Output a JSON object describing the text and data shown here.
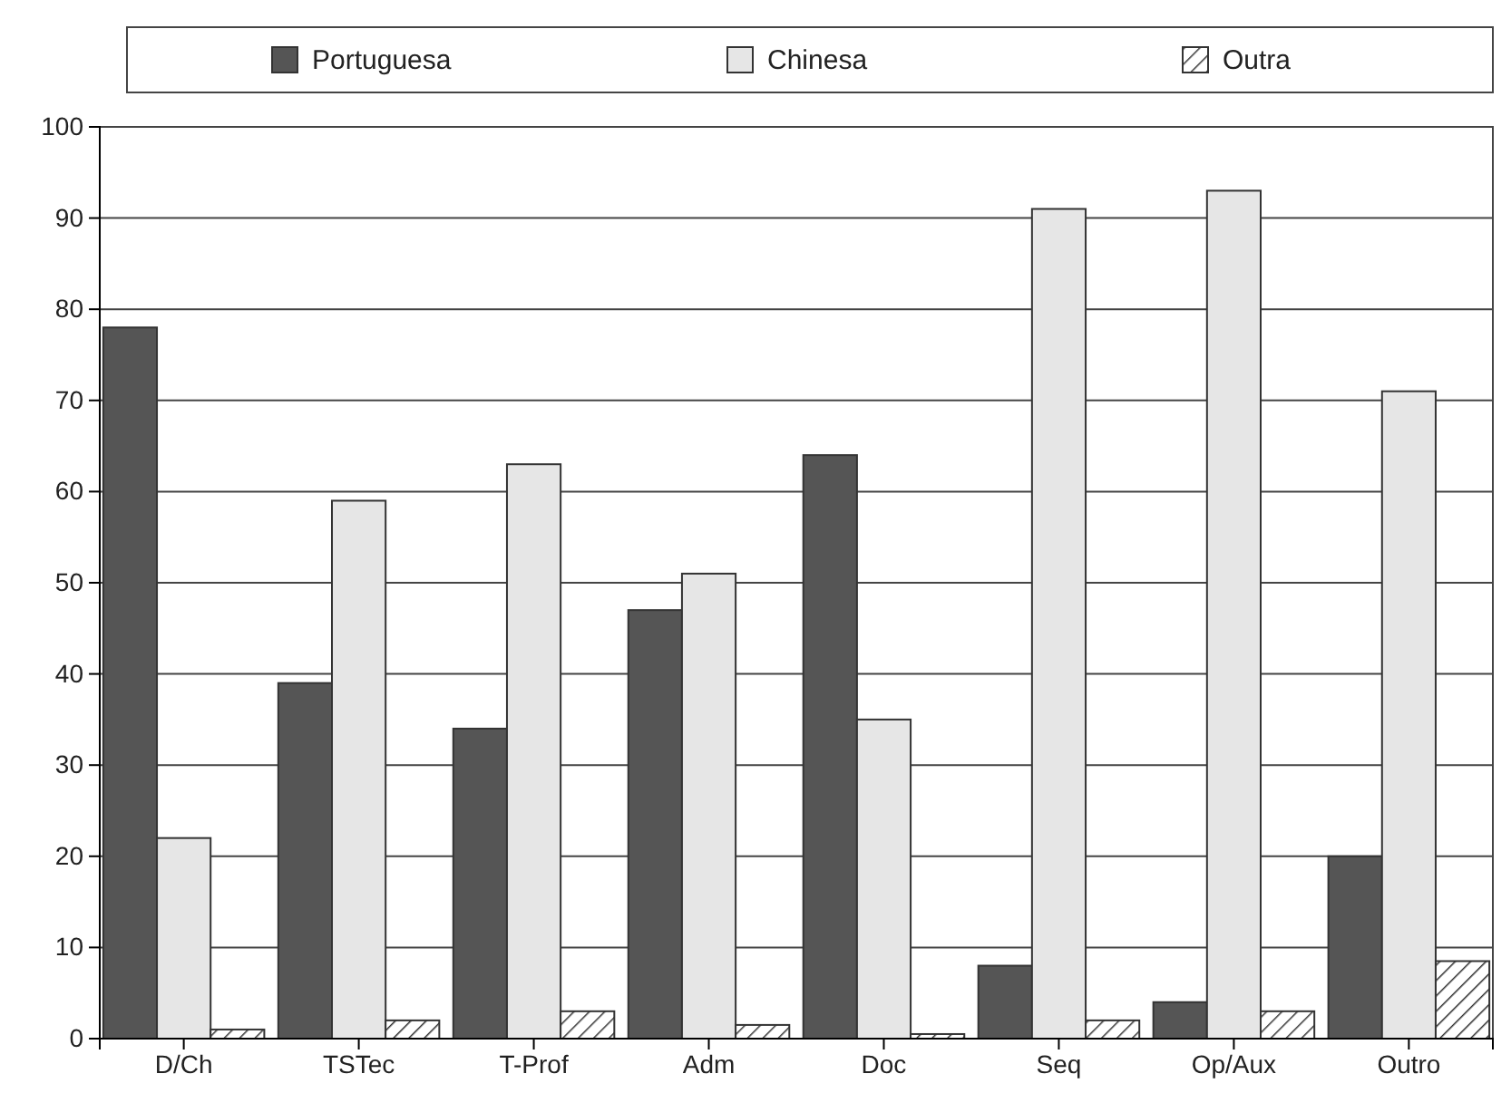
{
  "chart_data": {
    "type": "bar",
    "categories": [
      "D/Ch",
      "TSTec",
      "T-Prof",
      "Adm",
      "Doc",
      "Seq",
      "Op/Aux",
      "Outro"
    ],
    "series": [
      {
        "name": "Portuguesa",
        "color": "#555555",
        "values": [
          78,
          39,
          34,
          47,
          64,
          8,
          4,
          20
        ]
      },
      {
        "name": "Chinesa",
        "color": "#e6e6e6",
        "values": [
          22,
          59,
          63,
          51,
          35,
          91,
          93,
          71
        ]
      },
      {
        "name": "Outra",
        "color": "#333333",
        "values": [
          1,
          2,
          3,
          1.5,
          0.5,
          2,
          3,
          8.5
        ]
      }
    ],
    "ylim": [
      0,
      100
    ],
    "yticks": [
      0,
      10,
      20,
      30,
      40,
      50,
      60,
      70,
      80,
      90,
      100
    ],
    "grid": "y",
    "legend": "top"
  }
}
